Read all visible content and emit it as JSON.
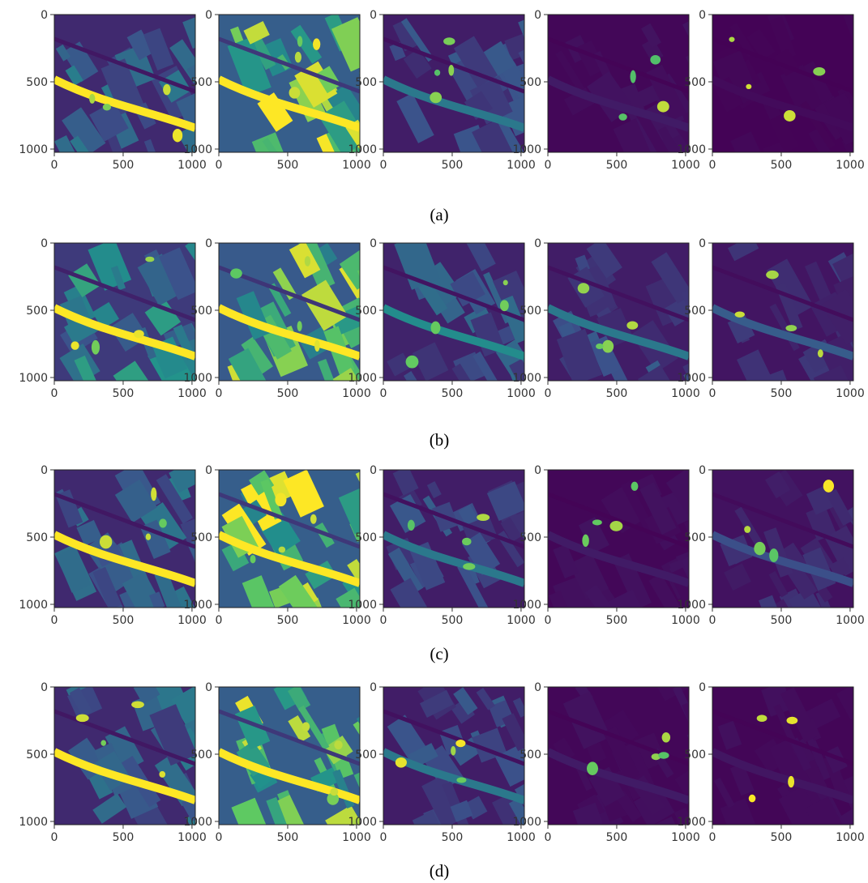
{
  "figure": {
    "rows": [
      {
        "label": "(a)",
        "panels": [
          "band-1",
          "band-2",
          "band-3",
          "band-4",
          "band-5"
        ]
      },
      {
        "label": "(b)",
        "panels": [
          "band-1",
          "band-2",
          "band-3",
          "band-4",
          "band-5"
        ]
      },
      {
        "label": "(c)",
        "panels": [
          "band-1",
          "band-2",
          "band-3",
          "band-4",
          "band-5"
        ]
      },
      {
        "label": "(d)",
        "panels": [
          "band-1",
          "band-2",
          "band-3",
          "band-4",
          "band-5"
        ]
      }
    ],
    "colormap": [
      "#440154",
      "#3b528b",
      "#21918c",
      "#5ec962",
      "#fde725"
    ]
  },
  "chart_data": {
    "type": "heatmap",
    "grid": {
      "rows": 4,
      "cols": 5
    },
    "x_ticks": [
      "0",
      "500",
      "1000"
    ],
    "y_ticks": [
      "0",
      "500",
      "1000"
    ],
    "x_tick_values": [
      0,
      500,
      1000
    ],
    "y_tick_values": [
      0,
      500,
      1000
    ],
    "xlim": [
      0,
      1024
    ],
    "ylim": [
      1024,
      0
    ],
    "row_labels": [
      "(a)",
      "(b)",
      "(c)",
      "(d)"
    ],
    "panel_intensity": [
      [
        0.35,
        0.85,
        0.25,
        0.05,
        0.02
      ],
      [
        0.5,
        0.8,
        0.3,
        0.25,
        0.18
      ],
      [
        0.35,
        0.85,
        0.25,
        0.05,
        0.15
      ],
      [
        0.35,
        0.85,
        0.25,
        0.05,
        0.04
      ]
    ]
  }
}
